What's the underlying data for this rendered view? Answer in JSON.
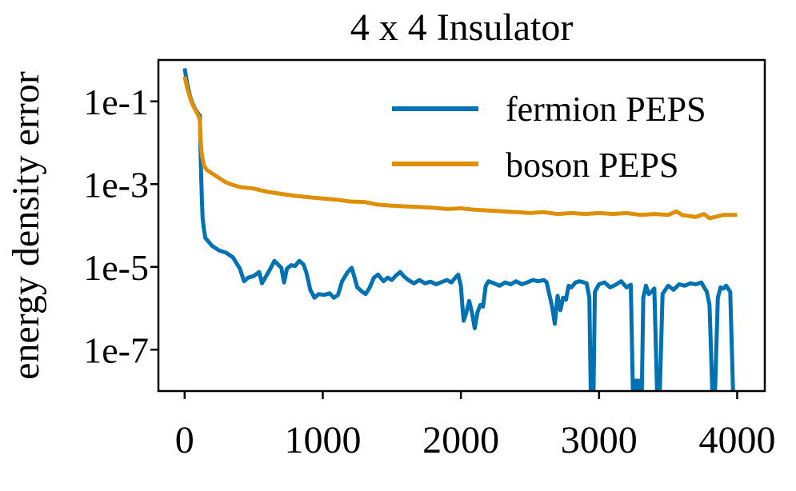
{
  "chart_data": {
    "type": "line",
    "title": "4 x 4 Insulator",
    "xlabel": "",
    "ylabel": "energy density error",
    "y_scale": "log",
    "xlim": [
      -190,
      4200
    ],
    "ylim": [
      1e-08,
      1.0
    ],
    "x_ticks": [
      0,
      1000,
      2000,
      3000,
      4000
    ],
    "x_tick_labels": [
      "0",
      "1000",
      "2000",
      "3000",
      "4000"
    ],
    "y_ticks": [
      0.1,
      0.001,
      1e-05,
      1e-07
    ],
    "y_tick_labels": [
      "1e-1",
      "1e-3",
      "1e-5",
      "1e-7"
    ],
    "grid": false,
    "legend_position": "top-right",
    "series": [
      {
        "name": "fermion PEPS",
        "color": "#0072b2",
        "points": [
          [
            0,
            0.63
          ],
          [
            20,
            0.25
          ],
          [
            40,
            0.13
          ],
          [
            60,
            0.085
          ],
          [
            80,
            0.062
          ],
          [
            100,
            0.05
          ],
          [
            110,
            0.045
          ],
          [
            115,
            0.006
          ],
          [
            120,
            0.0015
          ],
          [
            125,
            0.0004
          ],
          [
            130,
            0.00015
          ],
          [
            140,
            8e-05
          ],
          [
            150,
            5e-05
          ],
          [
            175,
            4e-05
          ],
          [
            200,
            3.2e-05
          ],
          [
            250,
            2.5e-05
          ],
          [
            300,
            2.2e-05
          ],
          [
            350,
            1.7e-05
          ],
          [
            400,
            9e-06
          ],
          [
            430,
            4.5e-06
          ],
          [
            460,
            5.5e-06
          ],
          [
            500,
            6e-06
          ],
          [
            540,
            7.5e-06
          ],
          [
            560,
            4e-06
          ],
          [
            590,
            6e-06
          ],
          [
            620,
            9e-06
          ],
          [
            650,
            1.4e-05
          ],
          [
            670,
            1.2e-05
          ],
          [
            700,
            9.5e-06
          ],
          [
            720,
            4.2e-06
          ],
          [
            740,
            9e-06
          ],
          [
            770,
            1.1e-05
          ],
          [
            800,
            1.05e-05
          ],
          [
            830,
            1.4e-05
          ],
          [
            860,
            1.15e-05
          ],
          [
            880,
            7.5e-06
          ],
          [
            910,
            2.8e-06
          ],
          [
            940,
            1.8e-06
          ],
          [
            970,
            2.2e-06
          ],
          [
            1010,
            2.1e-06
          ],
          [
            1050,
            2.3e-06
          ],
          [
            1080,
            1.8e-06
          ],
          [
            1110,
            2.1e-06
          ],
          [
            1140,
            4.5e-06
          ],
          [
            1180,
            7.5e-06
          ],
          [
            1210,
            9.5e-06
          ],
          [
            1230,
            5.5e-06
          ],
          [
            1250,
            3.2e-06
          ],
          [
            1280,
            2.6e-06
          ],
          [
            1310,
            2.2e-06
          ],
          [
            1340,
            3.2e-06
          ],
          [
            1370,
            5.5e-06
          ],
          [
            1400,
            6.5e-06
          ],
          [
            1440,
            4.5e-06
          ],
          [
            1470,
            5.5e-06
          ],
          [
            1500,
            4.8e-06
          ],
          [
            1530,
            6.2e-06
          ],
          [
            1560,
            7.5e-06
          ],
          [
            1590,
            5.8e-06
          ],
          [
            1620,
            4.8e-06
          ],
          [
            1660,
            4e-06
          ],
          [
            1700,
            4.8e-06
          ],
          [
            1740,
            4e-06
          ],
          [
            1780,
            4.4e-06
          ],
          [
            1820,
            3.8e-06
          ],
          [
            1860,
            4.3e-06
          ],
          [
            1900,
            4.8e-06
          ],
          [
            1930,
            4.2e-06
          ],
          [
            1960,
            5.5e-06
          ],
          [
            1980,
            6.5e-06
          ],
          [
            2000,
            3.5e-06
          ],
          [
            2010,
            1.2e-06
          ],
          [
            2020,
            5e-07
          ],
          [
            2040,
            8e-07
          ],
          [
            2060,
            1.5e-06
          ],
          [
            2080,
            8e-07
          ],
          [
            2100,
            3.3e-07
          ],
          [
            2120,
            8e-07
          ],
          [
            2140,
            1.2e-06
          ],
          [
            2160,
            1.1e-06
          ],
          [
            2180,
            3.5e-06
          ],
          [
            2200,
            4.5e-06
          ],
          [
            2240,
            4e-06
          ],
          [
            2280,
            3.5e-06
          ],
          [
            2320,
            4.2e-06
          ],
          [
            2360,
            3.8e-06
          ],
          [
            2400,
            4.5e-06
          ],
          [
            2440,
            3.8e-06
          ],
          [
            2480,
            4.2e-06
          ],
          [
            2520,
            4.8e-06
          ],
          [
            2560,
            4.5e-06
          ],
          [
            2600,
            4.8e-06
          ],
          [
            2620,
            4.3e-06
          ],
          [
            2640,
            2.2e-06
          ],
          [
            2660,
            1.1e-06
          ],
          [
            2680,
            4.2e-07
          ],
          [
            2700,
            2e-06
          ],
          [
            2720,
            9e-07
          ],
          [
            2740,
            1.8e-06
          ],
          [
            2760,
            1.6e-06
          ],
          [
            2780,
            3.5e-06
          ],
          [
            2800,
            3.2e-06
          ],
          [
            2830,
            4.2e-06
          ],
          [
            2860,
            4.5e-06
          ],
          [
            2890,
            4.2e-06
          ],
          [
            2910,
            4e-06
          ],
          [
            2930,
            1.8e-06
          ],
          [
            2940,
            1e-08
          ],
          [
            2960,
            1e-08
          ],
          [
            2970,
            2.5e-06
          ],
          [
            3000,
            3.8e-06
          ],
          [
            3040,
            4.2e-06
          ],
          [
            3080,
            3.2e-06
          ],
          [
            3120,
            3.7e-06
          ],
          [
            3160,
            4.5e-06
          ],
          [
            3200,
            3.2e-06
          ],
          [
            3230,
            3.7e-06
          ],
          [
            3245,
            1e-08
          ],
          [
            3255,
            1.8e-08
          ],
          [
            3265,
            1e-08
          ],
          [
            3275,
            1.8e-08
          ],
          [
            3290,
            1e-08
          ],
          [
            3300,
            1.8e-08
          ],
          [
            3310,
            1e-08
          ],
          [
            3320,
            1.8e-06
          ],
          [
            3340,
            3.5e-06
          ],
          [
            3360,
            2.2e-06
          ],
          [
            3380,
            2.5e-06
          ],
          [
            3400,
            3e-06
          ],
          [
            3420,
            1e-08
          ],
          [
            3440,
            1e-08
          ],
          [
            3460,
            2.2e-06
          ],
          [
            3500,
            3.5e-06
          ],
          [
            3540,
            2.8e-06
          ],
          [
            3580,
            3.8e-06
          ],
          [
            3620,
            3.5e-06
          ],
          [
            3660,
            4e-06
          ],
          [
            3700,
            3.8e-06
          ],
          [
            3740,
            4.2e-06
          ],
          [
            3780,
            2.5e-06
          ],
          [
            3800,
            1.2e-06
          ],
          [
            3820,
            1e-08
          ],
          [
            3840,
            1e-08
          ],
          [
            3860,
            1.8e-06
          ],
          [
            3880,
            3.2e-06
          ],
          [
            3900,
            3e-06
          ],
          [
            3920,
            3.5e-06
          ],
          [
            3950,
            2.5e-06
          ],
          [
            3970,
            1e-08
          ]
        ]
      },
      {
        "name": "boson PEPS",
        "color": "#de8f05",
        "points": [
          [
            0,
            0.4
          ],
          [
            20,
            0.2
          ],
          [
            40,
            0.12
          ],
          [
            60,
            0.08
          ],
          [
            80,
            0.06
          ],
          [
            100,
            0.045
          ],
          [
            110,
            0.035
          ],
          [
            115,
            0.012
          ],
          [
            125,
            0.005
          ],
          [
            140,
            0.0028
          ],
          [
            160,
            0.0022
          ],
          [
            200,
            0.0018
          ],
          [
            250,
            0.0014
          ],
          [
            300,
            0.0011
          ],
          [
            350,
            0.00095
          ],
          [
            400,
            0.00085
          ],
          [
            500,
            0.00078
          ],
          [
            600,
            0.00065
          ],
          [
            700,
            0.00058
          ],
          [
            800,
            0.00052
          ],
          [
            900,
            0.00048
          ],
          [
            1000,
            0.00045
          ],
          [
            1100,
            0.00042
          ],
          [
            1200,
            0.00038
          ],
          [
            1300,
            0.00037
          ],
          [
            1400,
            0.00032
          ],
          [
            1500,
            0.0003
          ],
          [
            1600,
            0.00029
          ],
          [
            1700,
            0.00028
          ],
          [
            1800,
            0.00027
          ],
          [
            1900,
            0.00025
          ],
          [
            2000,
            0.00026
          ],
          [
            2100,
            0.00024
          ],
          [
            2200,
            0.00023
          ],
          [
            2300,
            0.00022
          ],
          [
            2400,
            0.00021
          ],
          [
            2500,
            0.0002
          ],
          [
            2600,
            0.00021
          ],
          [
            2700,
            0.00019
          ],
          [
            2800,
            0.0002
          ],
          [
            2900,
            0.00019
          ],
          [
            3000,
            0.0002
          ],
          [
            3100,
            0.00019
          ],
          [
            3200,
            0.0002
          ],
          [
            3300,
            0.00018
          ],
          [
            3400,
            0.00019
          ],
          [
            3500,
            0.00018
          ],
          [
            3560,
            0.00022
          ],
          [
            3600,
            0.00018
          ],
          [
            3700,
            0.00016
          ],
          [
            3760,
            0.00019
          ],
          [
            3800,
            0.00015
          ],
          [
            3900,
            0.00018
          ],
          [
            4000,
            0.00018
          ]
        ]
      }
    ]
  }
}
